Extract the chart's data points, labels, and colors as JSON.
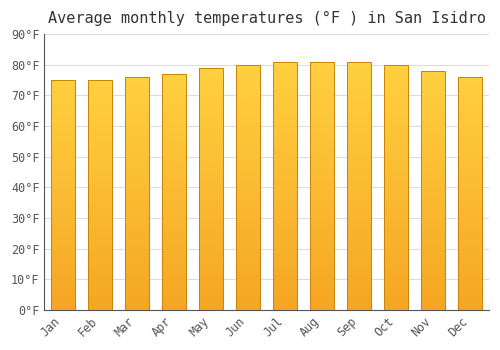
{
  "title": "Average monthly temperatures (°F ) in San Isidro",
  "months": [
    "Jan",
    "Feb",
    "Mar",
    "Apr",
    "May",
    "Jun",
    "Jul",
    "Aug",
    "Sep",
    "Oct",
    "Nov",
    "Dec"
  ],
  "values": [
    75,
    75,
    76,
    77,
    79,
    80,
    81,
    81,
    81,
    80,
    78,
    76
  ],
  "bar_color_bottom": "#F5A623",
  "bar_color_top": "#FFD040",
  "bar_edge_color": "#C8820A",
  "background_color": "#ffffff",
  "plot_bg_color": "#ffffff",
  "grid_color": "#dddddd",
  "ylim": [
    0,
    90
  ],
  "ytick_step": 10,
  "title_fontsize": 11,
  "tick_fontsize": 8.5,
  "font_family": "monospace",
  "bar_width": 0.65,
  "n_gradient_steps": 100
}
